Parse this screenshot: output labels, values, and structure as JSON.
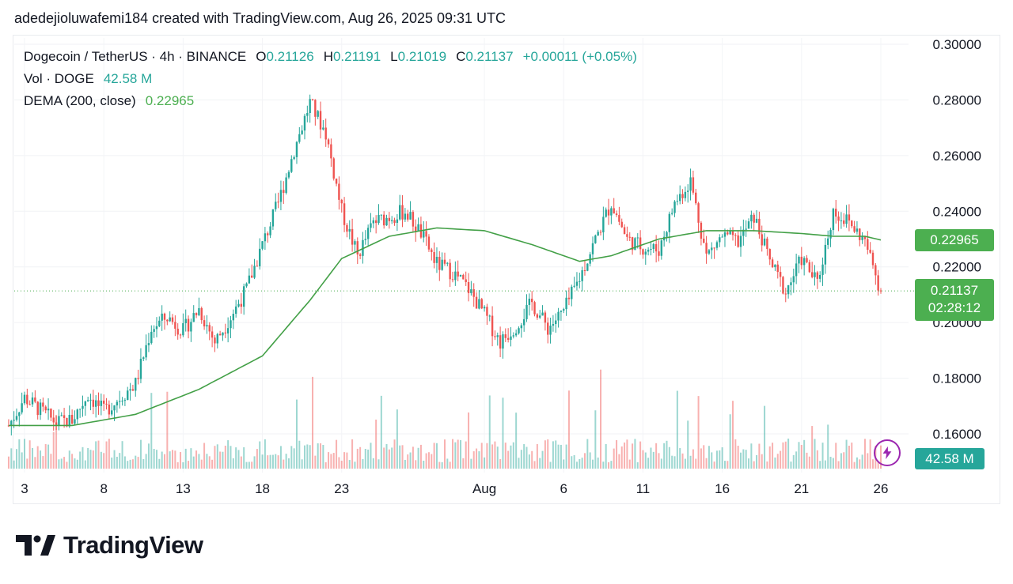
{
  "header": {
    "text": "adedejioluwafemi184 created with TradingView.com, Aug 26, 2025 09:31 UTC"
  },
  "legend": {
    "symbol": "Dogecoin / TetherUS · 4h · BINANCE",
    "open_label": "O",
    "open": "0.21126",
    "high_label": "H",
    "high": "0.21191",
    "low_label": "L",
    "low": "0.21019",
    "close_label": "C",
    "close": "0.21137",
    "change": "+0.00011 (+0.05%)",
    "vol_label": "Vol · DOGE",
    "vol_value": "42.58 M",
    "dema_label": "DEMA (200, close)",
    "dema_value": "0.22965"
  },
  "badges": {
    "dema": "0.22965",
    "price": "0.21137",
    "countdown": "02:28:12",
    "volume": "42.58 M"
  },
  "colors": {
    "up": "#26a69a",
    "down": "#ef5350",
    "dema": "#43a047",
    "badge_green": "#4caf50",
    "badge_teal": "#26a69a"
  },
  "icons": {
    "alert": "lightning-icon",
    "logo": "tradingview-logo-icon"
  },
  "brand": {
    "name": "TradingView"
  },
  "chart_data": {
    "type": "candlestick",
    "y_ticks": [
      "0.30000",
      "0.28000",
      "0.26000",
      "0.24000",
      "0.22000",
      "0.20000",
      "0.18000",
      "0.16000"
    ],
    "ylim": [
      0.15,
      0.3
    ],
    "x_ticks": [
      "3",
      "8",
      "13",
      "18",
      "23",
      "Aug",
      "6",
      "11",
      "16",
      "21",
      "26"
    ],
    "price_anchors": [
      [
        "Jul 2",
        0.163
      ],
      [
        "Jul 3",
        0.173
      ],
      [
        "Jul 5",
        0.164
      ],
      [
        "Jul 6",
        0.165
      ],
      [
        "Jul 7",
        0.174
      ],
      [
        "Jul 8",
        0.168
      ],
      [
        "Jul 10",
        0.178
      ],
      [
        "Jul 11",
        0.198
      ],
      [
        "Jul 12",
        0.202
      ],
      [
        "Jul 13",
        0.197
      ],
      [
        "Jul 14",
        0.205
      ],
      [
        "Jul 15",
        0.193
      ],
      [
        "Jul 16",
        0.202
      ],
      [
        "Jul 17",
        0.212
      ],
      [
        "Jul 18",
        0.228
      ],
      [
        "Jul 19",
        0.243
      ],
      [
        "Jul 20",
        0.262
      ],
      [
        "Jul 21",
        0.279
      ],
      [
        "Jul 22",
        0.268
      ],
      [
        "Jul 23",
        0.24
      ],
      [
        "Jul 24",
        0.224
      ],
      [
        "Jul 25",
        0.236
      ],
      [
        "Jul 27",
        0.24
      ],
      [
        "Jul 28",
        0.232
      ],
      [
        "Jul 29",
        0.221
      ],
      [
        "Jul 30",
        0.218
      ],
      [
        "Jul 31",
        0.212
      ],
      [
        "Aug 1",
        0.203
      ],
      [
        "Aug 2",
        0.193
      ],
      [
        "Aug 3",
        0.199
      ],
      [
        "Aug 4",
        0.207
      ],
      [
        "Aug 5",
        0.198
      ],
      [
        "Aug 6",
        0.204
      ],
      [
        "Aug 7",
        0.216
      ],
      [
        "Aug 8",
        0.23
      ],
      [
        "Aug 9",
        0.243
      ],
      [
        "Aug 10",
        0.23
      ],
      [
        "Aug 11",
        0.227
      ],
      [
        "Aug 12",
        0.226
      ],
      [
        "Aug 13",
        0.243
      ],
      [
        "Aug 14",
        0.251
      ],
      [
        "Aug 15",
        0.224
      ],
      [
        "Aug 16",
        0.231
      ],
      [
        "Aug 17",
        0.229
      ],
      [
        "Aug 18",
        0.238
      ],
      [
        "Aug 19",
        0.222
      ],
      [
        "Aug 20",
        0.211
      ],
      [
        "Aug 21",
        0.223
      ],
      [
        "Aug 22",
        0.214
      ],
      [
        "Aug 23",
        0.24
      ],
      [
        "Aug 24",
        0.236
      ],
      [
        "Aug 25",
        0.229
      ],
      [
        "Aug 26",
        0.21137
      ]
    ],
    "dema_anchors": [
      [
        "Jul 2",
        0.163
      ],
      [
        "Jul 6",
        0.163
      ],
      [
        "Jul 10",
        0.167
      ],
      [
        "Jul 14",
        0.176
      ],
      [
        "Jul 18",
        0.188
      ],
      [
        "Jul 21",
        0.208
      ],
      [
        "Jul 23",
        0.223
      ],
      [
        "Jul 26",
        0.231
      ],
      [
        "Jul 29",
        0.234
      ],
      [
        "Aug 1",
        0.233
      ],
      [
        "Aug 4",
        0.228
      ],
      [
        "Aug 7",
        0.222
      ],
      [
        "Aug 9",
        0.224
      ],
      [
        "Aug 12",
        0.23
      ],
      [
        "Aug 15",
        0.233
      ],
      [
        "Aug 18",
        0.233
      ],
      [
        "Aug 21",
        0.232
      ],
      [
        "Aug 23",
        0.231
      ],
      [
        "Aug 25",
        0.231
      ],
      [
        "Aug 26",
        0.22965
      ]
    ],
    "series": [
      {
        "name": "Dogecoin / TetherUS",
        "kind": "candles"
      },
      {
        "name": "DEMA (200, close)",
        "kind": "line",
        "last": 0.22965
      },
      {
        "name": "Vol · DOGE",
        "kind": "volume",
        "last": "42.58 M"
      }
    ],
    "last_price": 0.21137,
    "grid": true
  }
}
